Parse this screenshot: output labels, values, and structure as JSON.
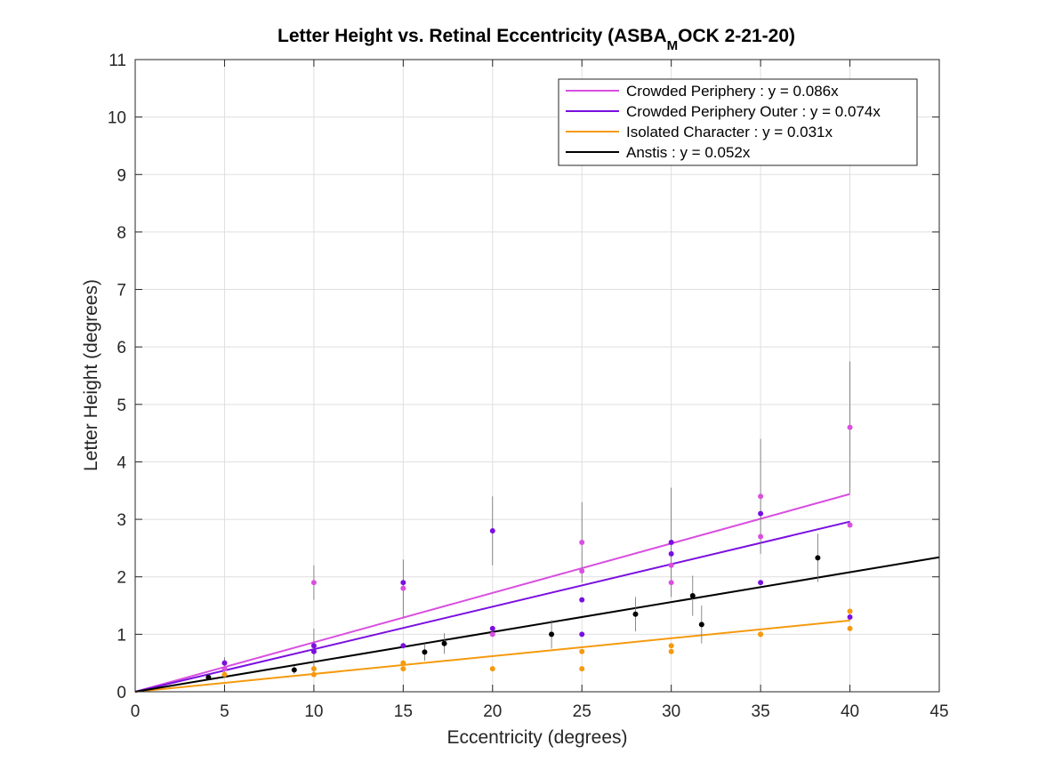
{
  "chart_data": {
    "type": "scatter",
    "title_main": "Letter Height vs. Retinal Eccentricity (ASBA",
    "title_sub": "M",
    "title_end": "OCK 2-21-20)",
    "xlabel": "Eccentricity (degrees)",
    "ylabel": "Letter Height (degrees)",
    "xlim": [
      0,
      45
    ],
    "ylim": [
      0,
      11
    ],
    "xticks": [
      0,
      5,
      10,
      15,
      20,
      25,
      30,
      35,
      40,
      45
    ],
    "yticks": [
      0,
      1,
      2,
      3,
      4,
      5,
      6,
      7,
      8,
      9,
      10,
      11
    ],
    "grid": true,
    "legend_position": "top-right",
    "series": [
      {
        "name": "Crowded Periphery : y = 0.086x",
        "color": "#d94fe0",
        "slope": 0.086,
        "fit_x": [
          0,
          40
        ],
        "points": [
          {
            "x": 5,
            "y": 0.4,
            "err": 0.1
          },
          {
            "x": 10,
            "y": 1.9,
            "err": 0.3
          },
          {
            "x": 15,
            "y": 1.8,
            "err": 0.5
          },
          {
            "x": 20,
            "y": 1.0,
            "err": 0.0
          },
          {
            "x": 25,
            "y": 2.6,
            "err": 0.7
          },
          {
            "x": 25,
            "y": 2.1,
            "err": 0.0
          },
          {
            "x": 30,
            "y": 1.9,
            "err": 0.0
          },
          {
            "x": 30,
            "y": 2.2,
            "err": 0.0
          },
          {
            "x": 35,
            "y": 3.4,
            "err": 1.0
          },
          {
            "x": 35,
            "y": 2.7,
            "err": 0.0
          },
          {
            "x": 40,
            "y": 4.6,
            "err": 1.15
          },
          {
            "x": 40,
            "y": 2.9,
            "err": 0.0
          }
        ]
      },
      {
        "name": "Crowded Periphery Outer : y = 0.074x",
        "color": "#7a0fe0",
        "slope": 0.074,
        "fit_x": [
          0,
          40
        ],
        "points": [
          {
            "x": 5,
            "y": 0.5,
            "err": 0.1
          },
          {
            "x": 10,
            "y": 0.8,
            "err": 0.0
          },
          {
            "x": 10,
            "y": 0.7,
            "err": 0.4
          },
          {
            "x": 15,
            "y": 1.9,
            "err": 0.0
          },
          {
            "x": 15,
            "y": 0.8,
            "err": 0.0
          },
          {
            "x": 20,
            "y": 2.8,
            "err": 0.6
          },
          {
            "x": 20,
            "y": 1.1,
            "err": 0.0
          },
          {
            "x": 25,
            "y": 1.6,
            "err": 0.0
          },
          {
            "x": 25,
            "y": 1.0,
            "err": 0.0
          },
          {
            "x": 30,
            "y": 2.6,
            "err": 0.95
          },
          {
            "x": 30,
            "y": 2.4,
            "err": 0.0
          },
          {
            "x": 35,
            "y": 3.1,
            "err": 0.0
          },
          {
            "x": 35,
            "y": 1.9,
            "err": 0.0
          },
          {
            "x": 40,
            "y": 1.3,
            "err": 0.0
          }
        ]
      },
      {
        "name": "Isolated Character : y = 0.031x",
        "color": "#f59a0f",
        "slope": 0.031,
        "fit_x": [
          0,
          40
        ],
        "points": [
          {
            "x": 5,
            "y": 0.3,
            "err": 0.0
          },
          {
            "x": 10,
            "y": 0.4,
            "err": 0.0
          },
          {
            "x": 10,
            "y": 0.3,
            "err": 0.0
          },
          {
            "x": 15,
            "y": 0.5,
            "err": 0.0
          },
          {
            "x": 15,
            "y": 0.4,
            "err": 0.0
          },
          {
            "x": 20,
            "y": 0.4,
            "err": 0.0
          },
          {
            "x": 25,
            "y": 0.7,
            "err": 0.0
          },
          {
            "x": 25,
            "y": 0.4,
            "err": 0.0
          },
          {
            "x": 30,
            "y": 0.8,
            "err": 0.0
          },
          {
            "x": 30,
            "y": 0.7,
            "err": 0.0
          },
          {
            "x": 35,
            "y": 1.0,
            "err": 0.0
          },
          {
            "x": 35,
            "y": 1.0,
            "err": 0.0
          },
          {
            "x": 40,
            "y": 1.4,
            "err": 0.0
          },
          {
            "x": 40,
            "y": 1.1,
            "err": 0.0
          }
        ]
      },
      {
        "name": "Anstis : y = 0.052x",
        "color": "#000000",
        "slope": 0.052,
        "fit_x": [
          0,
          45
        ],
        "points": [
          {
            "x": 4.1,
            "y": 0.25,
            "err": 0.05
          },
          {
            "x": 8.9,
            "y": 0.38,
            "err": 0.07
          },
          {
            "x": 16.2,
            "y": 0.69,
            "err": 0.15
          },
          {
            "x": 17.3,
            "y": 0.84,
            "err": 0.18
          },
          {
            "x": 23.3,
            "y": 1.0,
            "err": 0.25
          },
          {
            "x": 28.0,
            "y": 1.35,
            "err": 0.3
          },
          {
            "x": 31.2,
            "y": 1.67,
            "err": 0.35
          },
          {
            "x": 31.7,
            "y": 1.17,
            "err": 0.33
          },
          {
            "x": 38.2,
            "y": 2.33,
            "err": 0.42
          }
        ]
      }
    ]
  }
}
